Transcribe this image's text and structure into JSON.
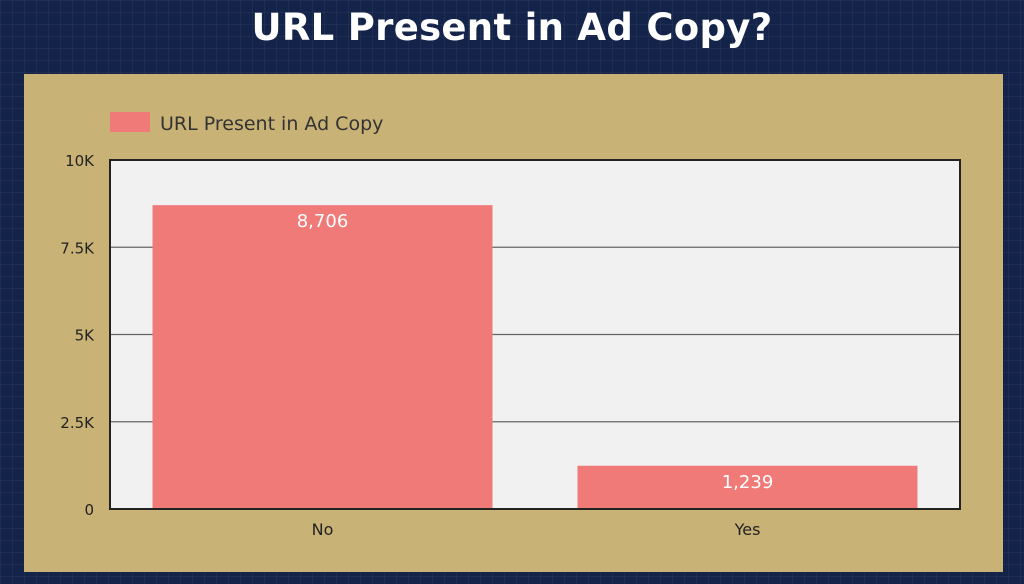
{
  "title": "URL Present in Ad Copy?",
  "chart_data": {
    "type": "bar",
    "title": "URL Present in Ad Copy?",
    "categories": [
      "No",
      "Yes"
    ],
    "series": [
      {
        "name": "URL Present in Ad Copy",
        "values": [
          8706,
          1239
        ]
      }
    ],
    "data_labels": [
      "8,706",
      "1,239"
    ],
    "y_ticks": [
      0,
      2500,
      5000,
      7500,
      10000
    ],
    "y_tick_labels": [
      "0",
      "2.5K",
      "5K",
      "7.5K",
      "10K"
    ],
    "ylim": [
      0,
      10000
    ],
    "xlabel": "",
    "ylabel": "",
    "legend": "top-left",
    "grid": true,
    "colors": {
      "bar": "#f07a78",
      "plot_bg": "#f1f1f1",
      "panel_bg": "#c9b275",
      "page_bg": "#14234a",
      "text": "#222222",
      "data_label": "#ffffff"
    }
  }
}
